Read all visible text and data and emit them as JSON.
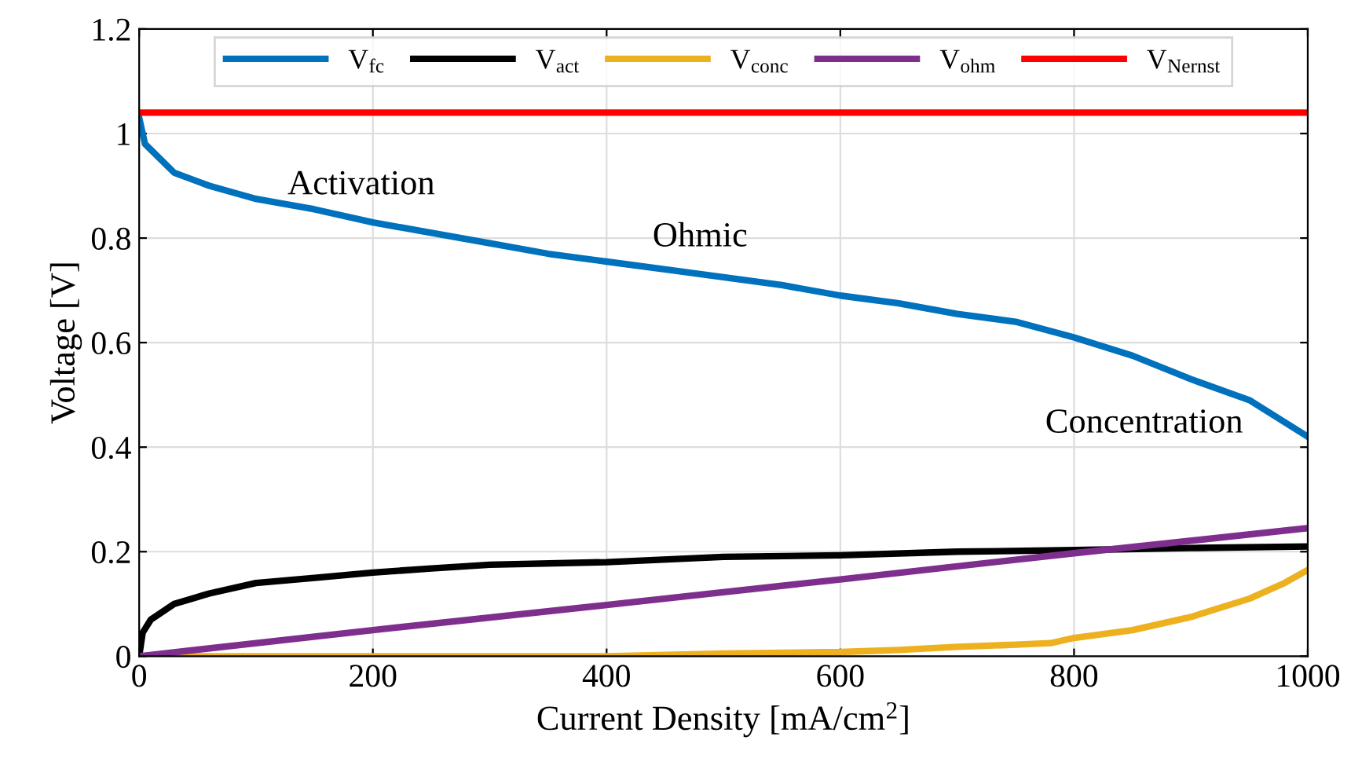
{
  "chart_data": {
    "type": "line",
    "xlabel": "Current Density [mA/cm$^{2}$]",
    "ylabel": "Voltage [V]",
    "xlim": [
      0,
      1000
    ],
    "xticks": [
      0,
      200,
      400,
      600,
      800,
      1000
    ],
    "ylim": [
      0,
      1.2
    ],
    "yticks": [
      0,
      {
        "value": 0.2,
        "label": "0.2"
      },
      {
        "value": 0.4,
        "label": "0.4"
      },
      {
        "value": 0.6,
        "label": "0.6"
      },
      {
        "value": 0.8,
        "label": "0.8"
      },
      1,
      {
        "value": 1.2,
        "label": "1.2"
      }
    ],
    "grid": true,
    "legend": "top",
    "line_style": "solid",
    "marker": "none",
    "series": [
      {
        "name": "V$_{fc}$",
        "color": "#0072bd",
        "x": [
          0,
          5,
          30,
          60,
          100,
          150,
          200,
          250,
          300,
          350,
          400,
          450,
          500,
          550,
          600,
          650,
          700,
          750,
          800,
          850,
          900,
          950,
          1000
        ],
        "values": [
          1.03,
          0.98,
          0.925,
          0.9,
          0.875,
          0.855,
          0.83,
          0.81,
          0.79,
          0.77,
          0.755,
          0.74,
          0.725,
          0.71,
          0.69,
          0.675,
          0.655,
          0.64,
          0.61,
          0.575,
          0.53,
          0.49,
          0.42
        ]
      },
      {
        "name": "V$_{act}$",
        "color": "#000000",
        "x": [
          0,
          3,
          10,
          30,
          60,
          100,
          150,
          200,
          250,
          300,
          400,
          500,
          600,
          700,
          800,
          900,
          1000
        ],
        "values": [
          0,
          0.045,
          0.07,
          0.1,
          0.12,
          0.14,
          0.15,
          0.16,
          0.168,
          0.175,
          0.18,
          0.19,
          0.193,
          0.2,
          0.203,
          0.207,
          0.21
        ]
      },
      {
        "name": "V$_{conc}$",
        "color": "#edb120",
        "x": [
          0,
          100,
          200,
          300,
          400,
          500,
          600,
          650,
          700,
          750,
          780,
          800,
          850,
          900,
          950,
          980,
          1000
        ],
        "values": [
          0,
          0,
          0,
          0,
          0,
          0.005,
          0.008,
          0.012,
          0.018,
          0.022,
          0.025,
          0.035,
          0.05,
          0.075,
          0.11,
          0.14,
          0.165
        ]
      },
      {
        "name": "V$_{ohm}$",
        "color": "#7e2f8e",
        "x": [
          0,
          200,
          400,
          600,
          800,
          1000
        ],
        "values": [
          0,
          0.05,
          0.098,
          0.147,
          0.197,
          0.245
        ]
      },
      {
        "name": "V$_{Nernst}$",
        "color": "#ff0000",
        "x": [
          0,
          1000
        ],
        "values": [
          1.04,
          1.04
        ]
      }
    ],
    "annotations": [
      "Activation",
      "Ohmic",
      "Concentration"
    ]
  }
}
